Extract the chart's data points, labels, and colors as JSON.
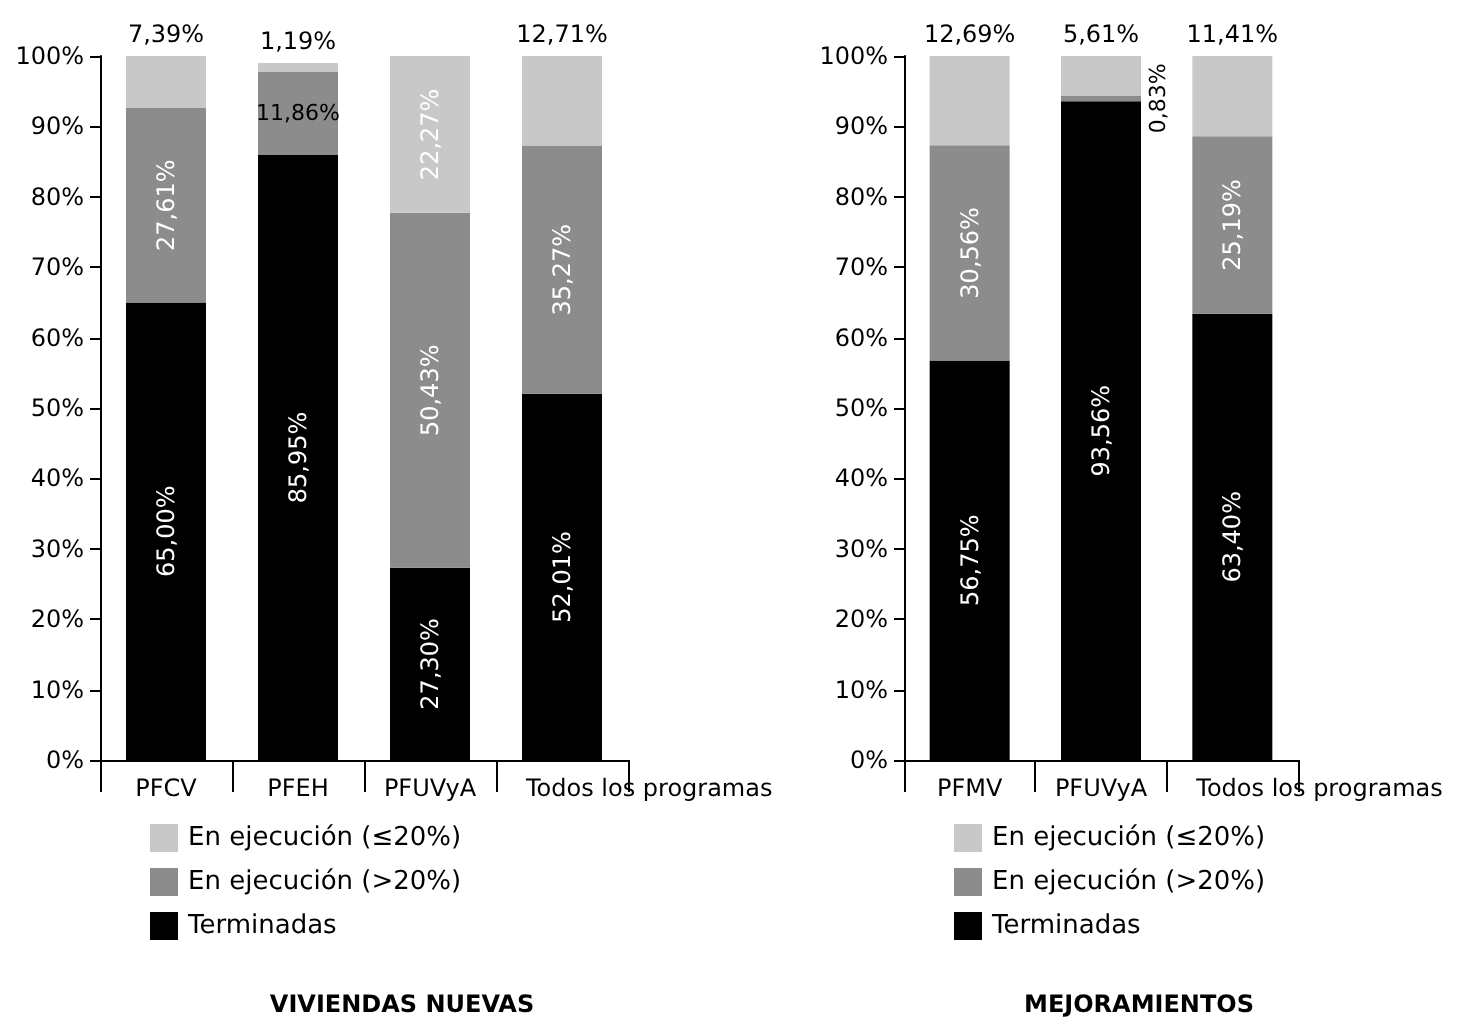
{
  "chart_data": [
    {
      "type": "bar",
      "title": "VIVIENDAS NUEVAS",
      "stacked": true,
      "categories": [
        "PFCV",
        "PFEH",
        "PFUVyA",
        "Todos los programas"
      ],
      "ylim": [
        0,
        100
      ],
      "yticks": [
        {
          "value": 0,
          "label": "0%"
        },
        {
          "value": 10,
          "label": "10%"
        },
        {
          "value": 20,
          "label": "20%"
        },
        {
          "value": 30,
          "label": "30%"
        },
        {
          "value": 40,
          "label": "40%"
        },
        {
          "value": 50,
          "label": "50%"
        },
        {
          "value": 60,
          "label": "60%"
        },
        {
          "value": 70,
          "label": "70%"
        },
        {
          "value": 80,
          "label": "80%"
        },
        {
          "value": 90,
          "label": "90%"
        },
        {
          "value": 100,
          "label": "100%"
        }
      ],
      "grid": false,
      "legend": "bottom",
      "series": [
        {
          "name": "Terminadas",
          "color": "#000000",
          "values": [
            65.0,
            85.95,
            27.3,
            52.01
          ],
          "value_labels": [
            "65,00%",
            "85,95%",
            "27,30%",
            "52,01%"
          ]
        },
        {
          "name": "En ejecución (>20%)",
          "color": "#8c8c8c",
          "values": [
            27.61,
            11.86,
            50.43,
            35.27
          ],
          "value_labels": [
            "27,61%",
            "11,86%",
            "50,43%",
            "35,27%"
          ]
        },
        {
          "name": "En ejecución (≤20%)",
          "color": "#c8c8c8",
          "values": [
            7.39,
            1.19,
            22.27,
            12.71
          ],
          "value_labels": [
            "7,39%",
            "1,19%",
            "22,27%",
            "12,71%"
          ]
        }
      ]
    },
    {
      "type": "bar",
      "title": "MEJORAMIENTOS",
      "stacked": true,
      "categories": [
        "PFMV",
        "PFUVyA",
        "Todos los programas"
      ],
      "ylim": [
        0,
        100
      ],
      "yticks": [
        {
          "value": 0,
          "label": "0%"
        },
        {
          "value": 10,
          "label": "10%"
        },
        {
          "value": 20,
          "label": "20%"
        },
        {
          "value": 30,
          "label": "30%"
        },
        {
          "value": 40,
          "label": "40%"
        },
        {
          "value": 50,
          "label": "50%"
        },
        {
          "value": 60,
          "label": "60%"
        },
        {
          "value": 70,
          "label": "70%"
        },
        {
          "value": 80,
          "label": "80%"
        },
        {
          "value": 90,
          "label": "90%"
        },
        {
          "value": 100,
          "label": "100%"
        }
      ],
      "grid": false,
      "legend": "bottom",
      "series": [
        {
          "name": "Terminadas",
          "color": "#000000",
          "values": [
            56.75,
            93.56,
            63.4
          ],
          "value_labels": [
            "56,75%",
            "93,56%",
            "63,40%"
          ]
        },
        {
          "name": "En ejecución (>20%)",
          "color": "#8c8c8c",
          "values": [
            30.56,
            0.83,
            25.19
          ],
          "value_labels": [
            "30,56%",
            "0,83%",
            "25,19%"
          ]
        },
        {
          "name": "En ejecución (≤20%)",
          "color": "#c8c8c8",
          "values": [
            12.69,
            5.61,
            11.41
          ],
          "value_labels": [
            "12,69%",
            "5,61%",
            "11,41%"
          ]
        }
      ]
    }
  ]
}
